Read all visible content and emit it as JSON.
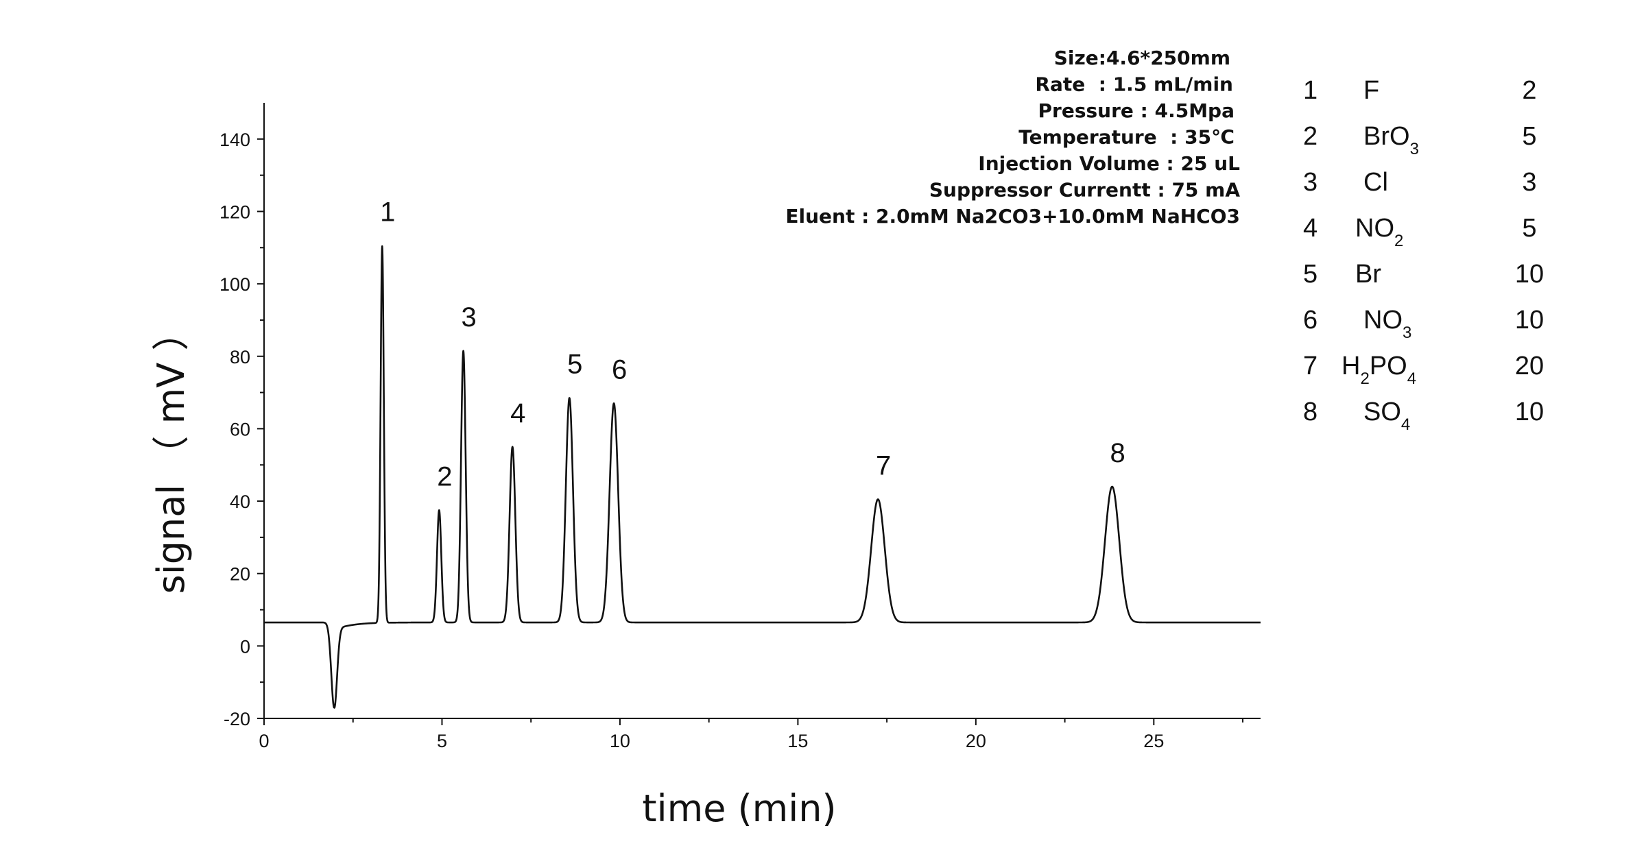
{
  "chart_data": {
    "type": "line",
    "xlabel": "time (min)",
    "ylabel": "signal （ mV ）",
    "xlim": [
      0,
      28
    ],
    "ylim": [
      -20,
      150
    ],
    "x_ticks": [
      0,
      5,
      10,
      15,
      20,
      25
    ],
    "y_ticks": [
      -20,
      0,
      20,
      40,
      60,
      80,
      100,
      120,
      140
    ],
    "baseline": 6.5,
    "dip": {
      "x": 1.97,
      "y": -17
    },
    "series": [
      {
        "peaks": [
          {
            "label": "1",
            "x": 3.32,
            "y": 110.5
          },
          {
            "label": "2",
            "x": 4.92,
            "y": 37.5
          },
          {
            "label": "3",
            "x": 5.6,
            "y": 81.5
          },
          {
            "label": "4",
            "x": 6.98,
            "y": 55
          },
          {
            "label": "5",
            "x": 8.58,
            "y": 68.5
          },
          {
            "label": "6",
            "x": 9.83,
            "y": 67
          },
          {
            "label": "7",
            "x": 17.25,
            "y": 40.5
          },
          {
            "label": "8",
            "x": 23.83,
            "y": 44
          }
        ]
      }
    ],
    "conditions": [
      "Size:4.6*250mm",
      "Rate  : 1.5 mL/min",
      "Pressure : 4.5Mpa",
      "Temperature  : 35℃",
      "Injection Volume : 25 uL",
      "Suppressor Currentt : 75 mA",
      "Eluent : 2.0mM Na2CO3+10.0mM NaHCO3"
    ],
    "analyte_table": [
      {
        "no": "1",
        "ion": "F",
        "sub": [],
        "conc": "2"
      },
      {
        "no": "2",
        "ion": "BrO",
        "sub": [
          "3"
        ],
        "conc": "5"
      },
      {
        "no": "3",
        "ion": "Cl",
        "sub": [],
        "conc": "3"
      },
      {
        "no": "4",
        "ion": "NO",
        "sub": [
          "2"
        ],
        "conc": "5"
      },
      {
        "no": "5",
        "ion": "Br",
        "sub": [],
        "conc": "10"
      },
      {
        "no": "6",
        "ion": "NO",
        "sub": [
          "3"
        ],
        "conc": "10"
      },
      {
        "no": "7",
        "ion": "H2PO4",
        "sub": [
          "2",
          "4"
        ],
        "conc": "20"
      },
      {
        "no": "8",
        "ion": "SO",
        "sub": [
          "4"
        ],
        "conc": "10"
      }
    ]
  }
}
